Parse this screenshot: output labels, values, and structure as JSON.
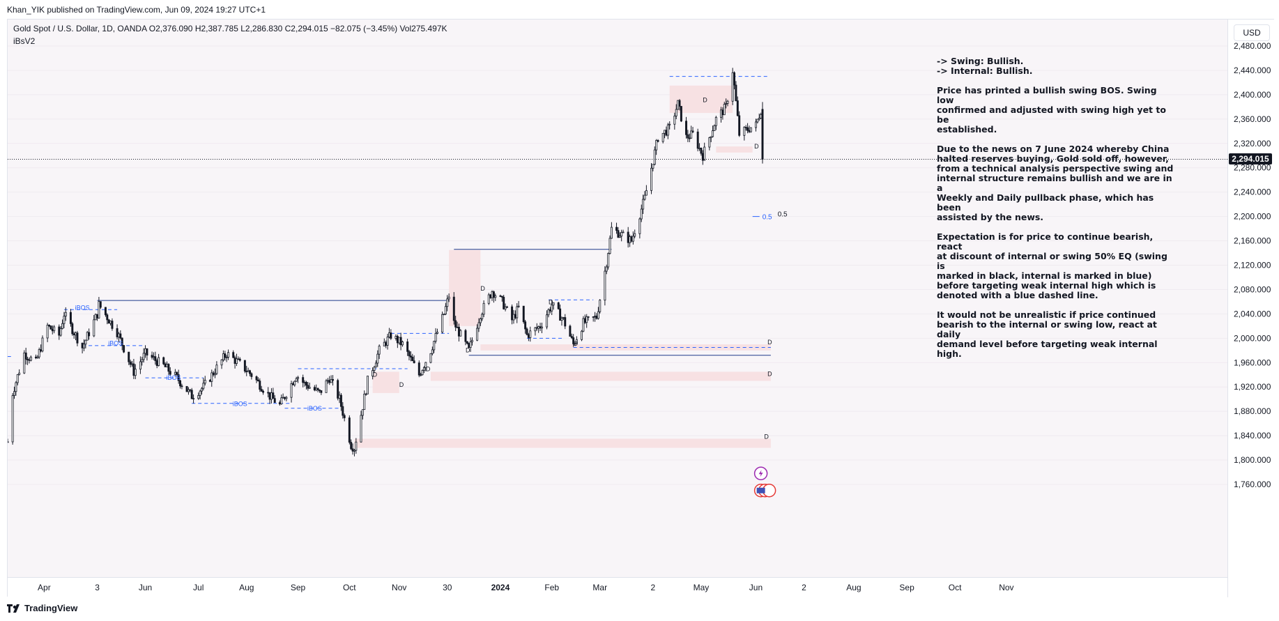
{
  "publisher": "Khan_YIK published on TradingView.com, Jun 09, 2024 19:27 UTC+1",
  "legend": {
    "symbol": "Gold Spot / U.S. Dollar, 1D, OANDA",
    "open": "O2,376.090",
    "high": "H2,387.785",
    "low": "L2,286.830",
    "close": "C2,294.015",
    "change": "−82.075 (−3.45%)",
    "volume": "Vol275.497K",
    "indicator": "iBsV2"
  },
  "currency": "USD",
  "last_price_label": "2,294.015",
  "footer_brand": "TradingView",
  "annotation": {
    "swing": "-> Swing: Bullish.",
    "internal": "-> Internal: Bullish.",
    "p1": [
      "Price has printed a bullish swing BOS.  Swing low",
      "confirmed and adjusted with swing high yet to be",
      "established."
    ],
    "p2": [
      "Due to the news on 7 June 2024 whereby China",
      "halted reserves buying, Gold sold off, however,",
      "from a technical analysis perspective swing and",
      "internal structure remains bullish and we are in a",
      "Weekly and Daily pullback phase, which has been",
      "assisted by the news."
    ],
    "p3": [
      "Expectation is for price to continue bearish, react",
      "at discount of internal or swing 50% EQ (swing is",
      "marked in black, internal is marked in blue)",
      "before targeting weak internal high which is",
      "denoted with a blue dashed line."
    ],
    "p4": [
      "It would not be unrealistic if price continued",
      "bearish to the internal or swing low, react at daily",
      "demand level before targeting weak internal high."
    ]
  },
  "colors": {
    "up": "#ffffff",
    "down": "#131722",
    "wick": "#131722",
    "demand_zone": "#f7e1e3",
    "swing_line": "#1e3a8a",
    "internal_line": "#2962ff",
    "background": "#f8f5f8"
  },
  "chart_data": {
    "type": "candlestick",
    "ylim": [
      1740,
      2500
    ],
    "price_ticks": [
      1760,
      1800,
      1840,
      1880,
      1920,
      1960,
      2000,
      2040,
      2080,
      2120,
      2160,
      2200,
      2240,
      2280,
      2320,
      2360,
      2400,
      2440,
      2480
    ],
    "price_tick_labels": [
      "1,760.000",
      "1,800.000",
      "1,840.000",
      "1,880.000",
      "1,920.000",
      "1,960.000",
      "2,000.000",
      "2,040.000",
      "2,080.000",
      "2,120.000",
      "2,160.000",
      "2,200.000",
      "2,240.000",
      "2,280.000",
      "2,320.000",
      "2,360.000",
      "2,400.000",
      "2,440.000",
      "2,480.000"
    ],
    "time_labels": [
      {
        "t": "Apr",
        "d": "2023-04-01",
        "bold": false
      },
      {
        "t": "3",
        "d": "2023-05-03",
        "bold": false
      },
      {
        "t": "Jun",
        "d": "2023-06-01",
        "bold": false
      },
      {
        "t": "Jul",
        "d": "2023-07-03",
        "bold": false
      },
      {
        "t": "Aug",
        "d": "2023-08-01",
        "bold": false
      },
      {
        "t": "Sep",
        "d": "2023-09-01",
        "bold": false
      },
      {
        "t": "Oct",
        "d": "2023-10-02",
        "bold": false
      },
      {
        "t": "Nov",
        "d": "2023-11-01",
        "bold": false
      },
      {
        "t": "30",
        "d": "2023-11-30",
        "bold": false
      },
      {
        "t": "2024",
        "d": "2024-01-01",
        "bold": true
      },
      {
        "t": "Feb",
        "d": "2024-02-01",
        "bold": false
      },
      {
        "t": "Mar",
        "d": "2024-03-01",
        "bold": false
      },
      {
        "t": "2",
        "d": "2024-04-02",
        "bold": false
      },
      {
        "t": "May",
        "d": "2024-05-01",
        "bold": false
      },
      {
        "t": "Jun",
        "d": "2024-06-03",
        "bold": false
      },
      {
        "t": "2",
        "d": "2024-07-02",
        "bold": false
      },
      {
        "t": "Aug",
        "d": "2024-08-01",
        "bold": false
      },
      {
        "t": "Sep",
        "d": "2024-09-02",
        "bold": false
      },
      {
        "t": "Oct",
        "d": "2024-10-01",
        "bold": false
      },
      {
        "t": "Nov",
        "d": "2024-11-01",
        "bold": false
      }
    ],
    "close_path": [
      [
        "2023-03-10",
        1830
      ],
      [
        "2023-03-13",
        1910
      ],
      [
        "2023-03-20",
        1975
      ],
      [
        "2023-03-27",
        1960
      ],
      [
        "2023-04-03",
        2020
      ],
      [
        "2023-04-10",
        2005
      ],
      [
        "2023-04-13",
        2040
      ],
      [
        "2023-04-24",
        1985
      ],
      [
        "2023-05-03",
        2040
      ],
      [
        "2023-05-04",
        2055
      ],
      [
        "2023-05-15",
        2010
      ],
      [
        "2023-05-25",
        1945
      ],
      [
        "2023-06-01",
        1975
      ],
      [
        "2023-06-12",
        1955
      ],
      [
        "2023-06-20",
        1935
      ],
      [
        "2023-06-29",
        1905
      ],
      [
        "2023-07-06",
        1920
      ],
      [
        "2023-07-20",
        1975
      ],
      [
        "2023-07-27",
        1960
      ],
      [
        "2023-08-04",
        1940
      ],
      [
        "2023-08-15",
        1905
      ],
      [
        "2023-08-21",
        1890
      ],
      [
        "2023-08-31",
        1940
      ],
      [
        "2023-09-05",
        1925
      ],
      [
        "2023-09-14",
        1910
      ],
      [
        "2023-09-20",
        1935
      ],
      [
        "2023-09-26",
        1900
      ],
      [
        "2023-10-03",
        1825
      ],
      [
        "2023-10-05",
        1820
      ],
      [
        "2023-10-13",
        1930
      ],
      [
        "2023-10-20",
        1980
      ],
      [
        "2023-10-27",
        2005
      ],
      [
        "2023-11-03",
        1990
      ],
      [
        "2023-11-13",
        1940
      ],
      [
        "2023-11-20",
        1980
      ],
      [
        "2023-11-28",
        2040
      ],
      [
        "2023-12-01",
        2070
      ],
      [
        "2023-12-04",
        2025
      ],
      [
        "2023-12-13",
        1980
      ],
      [
        "2023-12-20",
        2040
      ],
      [
        "2023-12-27",
        2078
      ],
      [
        "2024-01-02",
        2060
      ],
      [
        "2024-01-08",
        2030
      ],
      [
        "2024-01-12",
        2050
      ],
      [
        "2024-01-17",
        2005
      ],
      [
        "2024-01-25",
        2020
      ],
      [
        "2024-02-01",
        2055
      ],
      [
        "2024-02-08",
        2030
      ],
      [
        "2024-02-14",
        1990
      ],
      [
        "2024-02-20",
        2025
      ],
      [
        "2024-02-28",
        2035
      ],
      [
        "2024-03-05",
        2125
      ],
      [
        "2024-03-08",
        2180
      ],
      [
        "2024-03-20",
        2160
      ],
      [
        "2024-03-28",
        2230
      ],
      [
        "2024-04-05",
        2330
      ],
      [
        "2024-04-12",
        2345
      ],
      [
        "2024-04-17",
        2385
      ],
      [
        "2024-04-22",
        2330
      ],
      [
        "2024-04-26",
        2335
      ],
      [
        "2024-05-02",
        2300
      ],
      [
        "2024-05-10",
        2360
      ],
      [
        "2024-05-16",
        2380
      ],
      [
        "2024-05-20",
        2440
      ],
      [
        "2024-05-24",
        2335
      ],
      [
        "2024-05-30",
        2345
      ],
      [
        "2024-06-03",
        2350
      ],
      [
        "2024-06-06",
        2375
      ],
      [
        "2024-06-07",
        2294
      ]
    ],
    "zones": [
      {
        "from": "2023-10-05",
        "to": "2024-06-12",
        "low": 1820,
        "high": 1835
      },
      {
        "from": "2023-11-20",
        "to": "2024-06-12",
        "low": 1930,
        "high": 1945
      },
      {
        "from": "2023-10-16",
        "to": "2023-11-01",
        "low": 1910,
        "high": 1945
      },
      {
        "from": "2023-12-20",
        "to": "2024-06-12",
        "low": 1980,
        "high": 1990
      },
      {
        "from": "2023-12-01",
        "to": "2023-12-20",
        "low": 2020,
        "high": 2145
      },
      {
        "from": "2024-04-12",
        "to": "2024-05-20",
        "low": 2370,
        "high": 2415
      },
      {
        "from": "2024-05-10",
        "to": "2024-06-01",
        "low": 2305,
        "high": 2315
      }
    ],
    "zone_labels": [
      {
        "t": "D",
        "d": "2024-06-10",
        "p": 1990
      },
      {
        "t": "D",
        "d": "2024-06-10",
        "p": 1938
      },
      {
        "t": "D",
        "d": "2024-06-08",
        "p": 1835
      },
      {
        "t": "D",
        "d": "2023-10-16",
        "p": 1937
      },
      {
        "t": "D",
        "d": "2023-11-01",
        "p": 1920
      },
      {
        "t": "D",
        "d": "2023-12-20",
        "p": 2078
      },
      {
        "t": "D",
        "d": "2024-01-30",
        "p": 2056
      },
      {
        "t": "D",
        "d": "2024-02-14",
        "p": 1988
      },
      {
        "t": "D",
        "d": "2023-12-11",
        "p": 1977
      },
      {
        "t": "D",
        "d": "2023-11-17",
        "p": 1946
      },
      {
        "t": "D",
        "d": "2024-05-02",
        "p": 2388
      },
      {
        "t": "D",
        "d": "2024-06-02",
        "p": 2312
      }
    ],
    "swing_lines": [
      {
        "from": "2023-05-03",
        "to": "2023-12-01",
        "price": 2062
      },
      {
        "from": "2023-12-04",
        "to": "2024-03-08",
        "price": 2146
      },
      {
        "from": "2023-12-13",
        "to": "2024-06-12",
        "price": 1972
      }
    ],
    "internal_lines": [
      {
        "from": "2024-04-12",
        "to": "2024-06-10",
        "price": 2430,
        "style": "dashed"
      },
      {
        "from": "2024-02-14",
        "to": "2024-06-12",
        "price": 1985,
        "style": "dashed"
      },
      {
        "from": "2024-01-30",
        "to": "2024-02-26",
        "price": 2063,
        "style": "dashed"
      },
      {
        "from": "2024-01-17",
        "to": "2024-02-08",
        "price": 2000,
        "style": "dashed"
      },
      {
        "from": "2023-10-27",
        "to": "2023-12-01",
        "price": 2008,
        "style": "dashed"
      },
      {
        "from": "2023-09-01",
        "to": "2023-11-06",
        "price": 1950,
        "style": "dashed"
      },
      {
        "from": "2023-04-13",
        "to": "2023-05-15",
        "price": 2047,
        "style": "dashed"
      },
      {
        "from": "2023-04-24",
        "to": "2023-06-01",
        "price": 1988,
        "style": "dashed"
      },
      {
        "from": "2023-06-01",
        "to": "2023-07-06",
        "price": 1935,
        "style": "dashed"
      },
      {
        "from": "2023-06-29",
        "to": "2023-08-28",
        "price": 1893,
        "style": "dashed"
      },
      {
        "from": "2023-08-24",
        "to": "2023-09-26",
        "price": 1885,
        "style": "dashed"
      },
      {
        "from": "2023-03-10",
        "to": "2023-03-12",
        "price": 1970,
        "style": "solid"
      }
    ],
    "ibos_labels": [
      {
        "t": "iBOS",
        "d": "2023-04-24",
        "p": 2050
      },
      {
        "t": "iBOS",
        "d": "2023-05-14",
        "p": 1992
      },
      {
        "t": "iBOS",
        "d": "2023-06-18",
        "p": 1935
      },
      {
        "t": "iBOS",
        "d": "2023-07-28",
        "p": 1892
      },
      {
        "t": "iBOS",
        "d": "2023-09-11",
        "p": 1885
      }
    ],
    "eq_label": {
      "t": "0.5",
      "d": "2024-06-01",
      "p": 2200
    }
  }
}
